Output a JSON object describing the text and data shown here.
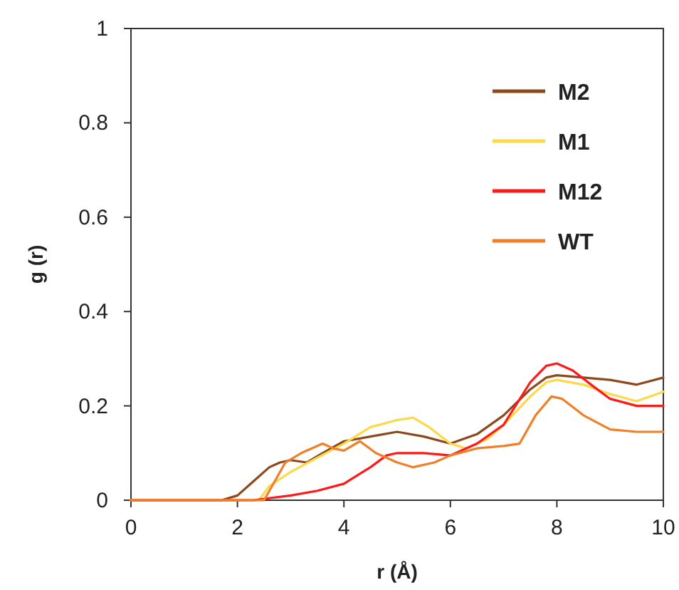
{
  "chart_data": {
    "type": "line",
    "xlabel": "r (Å)",
    "ylabel": "g (r)",
    "xlim": [
      0,
      10
    ],
    "ylim": [
      0,
      1
    ],
    "xticks": [
      0,
      2,
      4,
      6,
      8,
      10
    ],
    "yticks": [
      0,
      0.2,
      0.4,
      0.6,
      0.8,
      1
    ],
    "grid": false,
    "legend": "top right",
    "marker": "none",
    "line_style": "solid",
    "series": [
      {
        "name": "M2",
        "color": "#8c4a1c",
        "x": [
          0,
          1.7,
          2.0,
          2.3,
          2.6,
          2.8,
          3.0,
          3.3,
          3.6,
          4.0,
          4.5,
          5.0,
          5.5,
          6.0,
          6.5,
          7.0,
          7.5,
          7.8,
          8.0,
          8.5,
          9.0,
          9.5,
          10
        ],
        "values": [
          0,
          0,
          0.01,
          0.04,
          0.07,
          0.08,
          0.085,
          0.08,
          0.1,
          0.125,
          0.135,
          0.145,
          0.135,
          0.12,
          0.14,
          0.18,
          0.235,
          0.26,
          0.265,
          0.26,
          0.255,
          0.245,
          0.26
        ]
      },
      {
        "name": "M1",
        "color": "#fdd94a",
        "x": [
          0,
          2.4,
          2.6,
          3.0,
          3.5,
          4.0,
          4.5,
          5.0,
          5.3,
          5.6,
          6.0,
          6.3,
          6.7,
          7.0,
          7.5,
          7.8,
          8.0,
          8.5,
          9.0,
          9.5,
          10
        ],
        "values": [
          0,
          0,
          0.03,
          0.06,
          0.09,
          0.12,
          0.155,
          0.17,
          0.175,
          0.155,
          0.12,
          0.11,
          0.13,
          0.16,
          0.22,
          0.25,
          0.255,
          0.245,
          0.225,
          0.21,
          0.23
        ]
      },
      {
        "name": "M12",
        "color": "#ff1a1a",
        "x": [
          0,
          2.3,
          2.5,
          3.0,
          3.5,
          4.0,
          4.5,
          4.8,
          5.0,
          5.5,
          6.0,
          6.5,
          7.0,
          7.5,
          7.8,
          8.0,
          8.3,
          8.7,
          9.0,
          9.5,
          10
        ],
        "values": [
          0,
          0,
          0.003,
          0.01,
          0.02,
          0.035,
          0.07,
          0.095,
          0.1,
          0.1,
          0.095,
          0.12,
          0.16,
          0.25,
          0.285,
          0.29,
          0.275,
          0.24,
          0.215,
          0.2,
          0.2
        ]
      },
      {
        "name": "WT",
        "color": "#f07f2a",
        "x": [
          0,
          2.5,
          2.7,
          2.9,
          3.2,
          3.6,
          3.8,
          4.0,
          4.3,
          4.6,
          5.0,
          5.3,
          5.7,
          6.0,
          6.5,
          7.0,
          7.3,
          7.6,
          7.9,
          8.1,
          8.5,
          9.0,
          9.5,
          10
        ],
        "values": [
          0,
          0,
          0.04,
          0.08,
          0.1,
          0.12,
          0.11,
          0.105,
          0.125,
          0.1,
          0.08,
          0.07,
          0.08,
          0.095,
          0.11,
          0.115,
          0.12,
          0.18,
          0.22,
          0.215,
          0.18,
          0.15,
          0.145,
          0.145
        ]
      }
    ]
  }
}
